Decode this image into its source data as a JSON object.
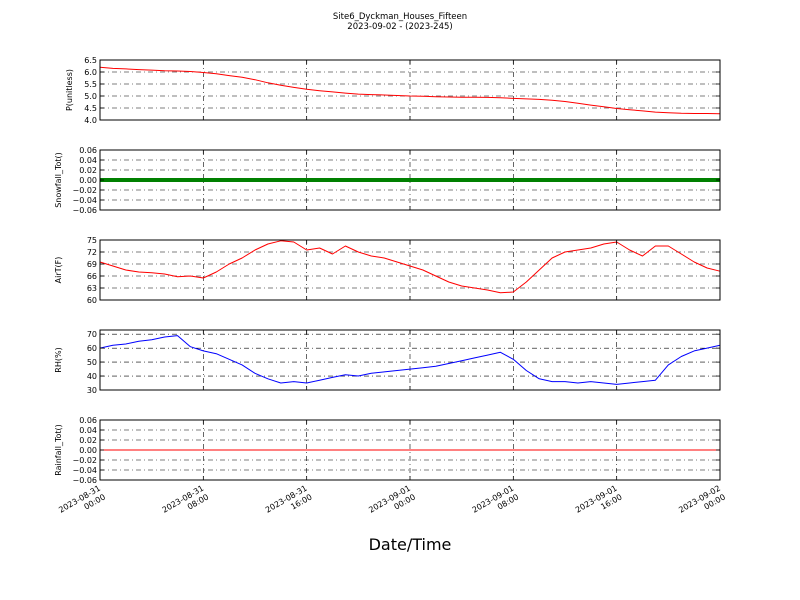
{
  "figure": {
    "title": "Site6_Dyckman_Houses_Fifteen",
    "subtitle": "2023-09-02 - (2023-245)",
    "xlabel": "Date/Time"
  },
  "chart_data": [
    {
      "type": "line",
      "ylabel": "P(unitless)",
      "ylim": [
        4.0,
        6.5
      ],
      "yticks": [
        "6.5",
        "6.0",
        "5.5",
        "5.0",
        "4.5",
        "4.0"
      ],
      "ytick_values": [
        6.5,
        6.0,
        5.5,
        5.0,
        4.5,
        4.0
      ],
      "grid": true,
      "series": [
        {
          "color": "#ff0000",
          "x": [
            0,
            1,
            2,
            3,
            4,
            5,
            6,
            7,
            8,
            9,
            10,
            11,
            12,
            13,
            14,
            15,
            16,
            17,
            18,
            19,
            20,
            21,
            22,
            23,
            24,
            25,
            26,
            27,
            28,
            29,
            30,
            31,
            32,
            33,
            34,
            35,
            36,
            37,
            38,
            39,
            40,
            41,
            42,
            43,
            44,
            45,
            46,
            47,
            48
          ],
          "y": [
            6.2,
            6.15,
            6.13,
            6.1,
            6.08,
            6.05,
            6.04,
            6.02,
            5.98,
            5.93,
            5.85,
            5.78,
            5.68,
            5.55,
            5.45,
            5.36,
            5.28,
            5.22,
            5.17,
            5.12,
            5.08,
            5.06,
            5.04,
            5.02,
            5.0,
            4.99,
            4.97,
            4.96,
            4.95,
            4.95,
            4.94,
            4.93,
            4.9,
            4.88,
            4.86,
            4.82,
            4.77,
            4.7,
            4.62,
            4.55,
            4.48,
            4.43,
            4.38,
            4.33,
            4.3,
            4.28,
            4.27,
            4.27,
            4.26
          ]
        }
      ]
    },
    {
      "type": "line",
      "ylabel": "Snowfall_Tot()",
      "ylim": [
        -0.06,
        0.06
      ],
      "yticks": [
        "0.06",
        "0.04",
        "0.02",
        "0.00",
        "−0.02",
        "−0.04",
        "−0.06"
      ],
      "ytick_values": [
        0.06,
        0.04,
        0.02,
        0.0,
        -0.02,
        -0.04,
        -0.06
      ],
      "grid": true,
      "series": [
        {
          "color": "#008000",
          "marker": "dot",
          "x": [
            0,
            48
          ],
          "y": [
            0,
            0
          ]
        }
      ]
    },
    {
      "type": "line",
      "ylabel": "AirT(F)",
      "ylim": [
        60,
        75
      ],
      "yticks": [
        "75",
        "72",
        "69",
        "66",
        "63",
        "60"
      ],
      "ytick_values": [
        75,
        72,
        69,
        66,
        63,
        60
      ],
      "grid": true,
      "series": [
        {
          "color": "#ff0000",
          "x": [
            0,
            1,
            2,
            3,
            4,
            5,
            6,
            7,
            8,
            9,
            10,
            11,
            12,
            13,
            14,
            15,
            16,
            17,
            18,
            19,
            20,
            21,
            22,
            23,
            24,
            25,
            26,
            27,
            28,
            29,
            30,
            31,
            32,
            33,
            34,
            35,
            36,
            37,
            38,
            39,
            40,
            41,
            42,
            43,
            44,
            45,
            46,
            47,
            48
          ],
          "y": [
            69.5,
            68.5,
            67.5,
            67,
            66.8,
            66.5,
            65.8,
            66,
            65.5,
            67,
            69,
            70.5,
            72.5,
            74,
            74.8,
            74.5,
            72.5,
            73,
            71.5,
            73.5,
            72,
            71,
            70.5,
            69.5,
            68.5,
            67.5,
            66,
            64.5,
            63.5,
            63,
            62.5,
            61.8,
            62,
            64.5,
            67.5,
            70.5,
            72,
            72.5,
            73,
            74,
            74.5,
            72.5,
            71,
            73.5,
            73.5,
            71.5,
            69.5,
            68,
            67.2
          ]
        }
      ]
    },
    {
      "type": "line",
      "ylabel": "RH(%)",
      "ylim": [
        30,
        73
      ],
      "yticks": [
        "70",
        "60",
        "50",
        "40",
        "30"
      ],
      "ytick_values": [
        70,
        60,
        50,
        40,
        30
      ],
      "grid": true,
      "series": [
        {
          "color": "#0000ff",
          "x": [
            0,
            1,
            2,
            3,
            4,
            5,
            6,
            7,
            8,
            9,
            10,
            11,
            12,
            13,
            14,
            15,
            16,
            17,
            18,
            19,
            20,
            21,
            22,
            23,
            24,
            25,
            26,
            27,
            28,
            29,
            30,
            31,
            32,
            33,
            34,
            35,
            36,
            37,
            38,
            39,
            40,
            41,
            42,
            43,
            44,
            45,
            46,
            47,
            48
          ],
          "y": [
            60,
            62,
            63,
            65,
            66,
            68,
            69,
            61,
            58,
            56,
            52,
            48,
            42,
            38,
            35,
            36,
            35,
            37,
            39,
            41,
            40,
            42,
            43,
            44,
            45,
            46,
            47,
            49,
            51,
            53,
            55,
            57,
            52,
            44,
            38,
            36,
            36,
            35,
            36,
            35,
            34,
            35,
            36,
            37,
            48,
            54,
            58,
            60,
            62
          ]
        }
      ]
    },
    {
      "type": "line",
      "ylabel": "Rainfall_Tot()",
      "ylim": [
        -0.06,
        0.06
      ],
      "yticks": [
        "0.06",
        "0.04",
        "0.02",
        "0.00",
        "−0.02",
        "−0.04",
        "−0.06"
      ],
      "ytick_values": [
        0.06,
        0.04,
        0.02,
        0.0,
        -0.02,
        -0.04,
        -0.06
      ],
      "grid": true,
      "series": [
        {
          "color": "#ff0000",
          "x": [
            0,
            48
          ],
          "y": [
            0,
            0
          ]
        }
      ]
    }
  ],
  "xticks": [
    {
      "line1": "2023-08-31",
      "line2": "00:00"
    },
    {
      "line1": "2023-08-31",
      "line2": "08:00"
    },
    {
      "line1": "2023-08-31",
      "line2": "16:00"
    },
    {
      "line1": "2023-09-01",
      "line2": "00:00"
    },
    {
      "line1": "2023-09-01",
      "line2": "08:00"
    },
    {
      "line1": "2023-09-01",
      "line2": "16:00"
    },
    {
      "line1": "2023-09-02",
      "line2": "00:00"
    }
  ]
}
